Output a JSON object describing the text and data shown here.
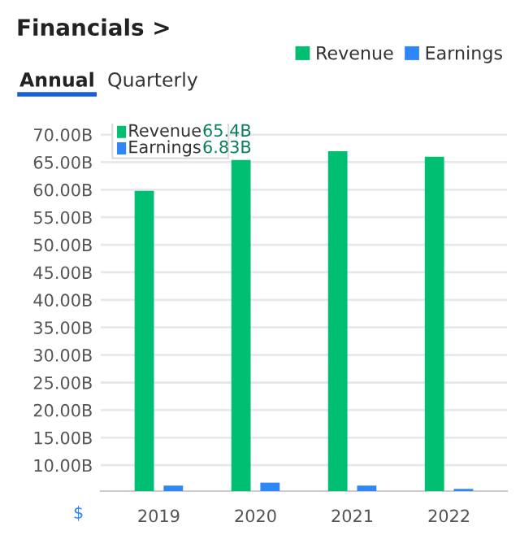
{
  "chart_data": {
    "type": "bar",
    "title": "Financials >",
    "categories": [
      "2019",
      "2020",
      "2021",
      "2022"
    ],
    "series": [
      {
        "name": "Revenue",
        "color": "#00bf72",
        "values": [
          59.8,
          65.4,
          67.0,
          66.0
        ]
      },
      {
        "name": "Earnings",
        "color": "#2f86f6",
        "values": [
          6.3,
          6.83,
          6.3,
          5.7
        ]
      }
    ],
    "ylim": [
      5.3,
      72
    ],
    "yticks": [
      {
        "value": 10,
        "label": "10.00B"
      },
      {
        "value": 15,
        "label": "15.00B"
      },
      {
        "value": 20,
        "label": "20.00B"
      },
      {
        "value": 25,
        "label": "25.00B"
      },
      {
        "value": 30,
        "label": "30.00B"
      },
      {
        "value": 35,
        "label": "35.00B"
      },
      {
        "value": 40,
        "label": "40.00B"
      },
      {
        "value": 45,
        "label": "45.00B"
      },
      {
        "value": 50,
        "label": "50.00B"
      },
      {
        "value": 55,
        "label": "55.00B"
      },
      {
        "value": 60,
        "label": "60.00B"
      },
      {
        "value": 65,
        "label": "65.00B"
      },
      {
        "value": 70,
        "label": "70.00B"
      }
    ],
    "grid": "y",
    "legend": "top right",
    "annotations": [
      "Annual",
      "Quarterly",
      "$",
      "Revenue",
      "65.4B",
      "Earnings",
      "6.83B"
    ]
  }
}
